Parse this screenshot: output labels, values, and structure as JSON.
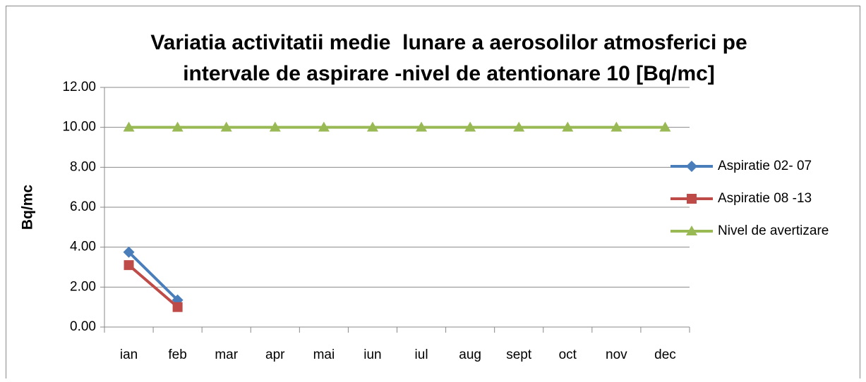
{
  "chart_data": {
    "type": "line",
    "title": [
      "Variatia activitatii medie  lunare a aerosolilor atmosferici pe",
      "intervale de aspirare -nivel de atentionare 10 [Bq/mc]"
    ],
    "y_label": "Bq/mc",
    "categories": [
      "ian",
      "feb",
      "mar",
      "apr",
      "mai",
      "iun",
      "iul",
      "aug",
      "sept",
      "oct",
      "nov",
      "dec"
    ],
    "series": [
      {
        "name": "Aspiratie 02- 07",
        "color": "#4a7ebb",
        "marker": "diamond",
        "values": [
          3.75,
          1.35,
          null,
          null,
          null,
          null,
          null,
          null,
          null,
          null,
          null,
          null
        ]
      },
      {
        "name": "Aspiratie 08 -13",
        "color": "#be4b48",
        "marker": "square",
        "values": [
          3.1,
          1.0,
          null,
          null,
          null,
          null,
          null,
          null,
          null,
          null,
          null,
          null
        ]
      },
      {
        "name": "Nivel de avertizare",
        "color": "#98b954",
        "marker": "triangle",
        "values": [
          10,
          10,
          10,
          10,
          10,
          10,
          10,
          10,
          10,
          10,
          10,
          10
        ]
      }
    ],
    "ylim": [
      0,
      12
    ],
    "yticks": [
      {
        "value": 0,
        "label": "0.00"
      },
      {
        "value": 2,
        "label": "2.00"
      },
      {
        "value": 4,
        "label": "4.00"
      },
      {
        "value": 6,
        "label": "6.00"
      },
      {
        "value": 8,
        "label": "8.00"
      },
      {
        "value": 10,
        "label": "10.00"
      },
      {
        "value": 12,
        "label": "12.00"
      }
    ],
    "grid": true,
    "legend": "right"
  }
}
